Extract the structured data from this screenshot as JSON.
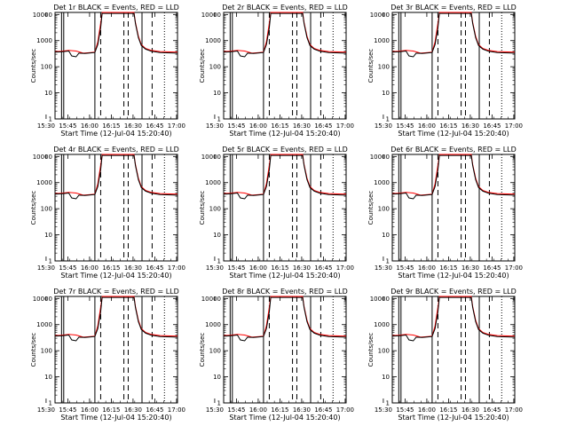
{
  "chart_data": {
    "type": "line",
    "layout": {
      "rows": 3,
      "cols": 3
    },
    "x_ticks": [
      "15:30",
      "15:45",
      "16:00",
      "16:15",
      "16:30",
      "16:45",
      "17:00"
    ],
    "xlim_minutes": [
      15.5,
      100
    ],
    "y_ticks": [
      "1",
      "10",
      "100",
      "1000",
      "10000"
    ],
    "ylim": [
      1,
      12000
    ],
    "y_scale": "log",
    "ylabel": "Counts/sec",
    "xlabel": "Start Time (12-Jul-04 15:20:40)",
    "legend_colors": {
      "events": "#000000",
      "lld": "#ff0000"
    },
    "vertical_markers": {
      "solid_minutes": [
        20,
        21.5,
        43,
        75.5
      ],
      "dashed_minutes": [
        47,
        63,
        66,
        82.5
      ],
      "dotted_minutes": [
        91
      ]
    },
    "panels": [
      {
        "title": "Det 1r BLACK = Events, RED = LLD"
      },
      {
        "title": "Det 2r BLACK = Events, RED = LLD"
      },
      {
        "title": "Det 3r BLACK = Events, RED = LLD"
      },
      {
        "title": "Det 4r BLACK = Events, RED = LLD"
      },
      {
        "title": "Det 5r BLACK = Events, RED = LLD"
      },
      {
        "title": "Det 6r BLACK = Events, RED = LLD"
      },
      {
        "title": "Det 7r BLACK = Events, RED = LLD"
      },
      {
        "title": "Det 8r BLACK = Events, RED = LLD"
      },
      {
        "title": "Det 9r BLACK = Events, RED = LLD"
      }
    ],
    "series": [
      {
        "name": "LLD",
        "color": "#ff0000",
        "points": [
          [
            15.5,
            380
          ],
          [
            20,
            390
          ],
          [
            25,
            420
          ],
          [
            30,
            400
          ],
          [
            35,
            330
          ],
          [
            40,
            350
          ],
          [
            43,
            360
          ],
          [
            45,
            900
          ],
          [
            47,
            4500
          ],
          [
            48,
            12000
          ],
          [
            70,
            12000
          ],
          [
            71,
            5000
          ],
          [
            73,
            1500
          ],
          [
            75,
            700
          ],
          [
            78,
            500
          ],
          [
            82,
            420
          ],
          [
            88,
            380
          ],
          [
            100,
            360
          ]
        ]
      },
      {
        "name": "Events",
        "color": "#000000",
        "points": [
          [
            15.5,
            360
          ],
          [
            20,
            370
          ],
          [
            25,
            400
          ],
          [
            27,
            260
          ],
          [
            30,
            240
          ],
          [
            32,
            330
          ],
          [
            36,
            320
          ],
          [
            41,
            340
          ],
          [
            43,
            350
          ],
          [
            45,
            700
          ],
          [
            47,
            3000
          ],
          [
            48,
            11000
          ],
          [
            70,
            11000
          ],
          [
            71,
            4500
          ],
          [
            73,
            1300
          ],
          [
            75,
            650
          ],
          [
            78,
            470
          ],
          [
            82,
            390
          ],
          [
            88,
            350
          ],
          [
            100,
            330
          ]
        ]
      }
    ]
  }
}
